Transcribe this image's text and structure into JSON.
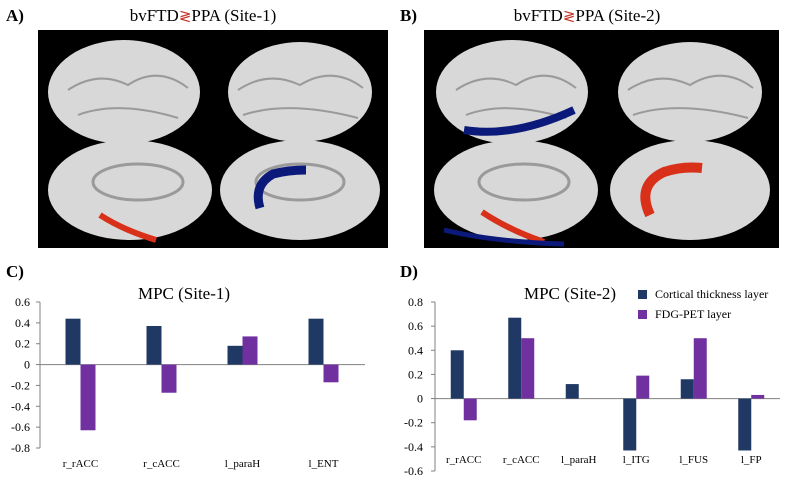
{
  "panels": {
    "a": {
      "label": "A)",
      "title_prefix": "bvFTD",
      "comparator": "≷",
      "title_suffix": "PPA (Site-1)"
    },
    "b": {
      "label": "B)",
      "title_prefix": "bvFTD",
      "comparator": "≷",
      "title_suffix": "PPA (Site-2)"
    },
    "c": {
      "label": "C)"
    },
    "d": {
      "label": "D)"
    }
  },
  "colors": {
    "thickness": "#203864",
    "fdg": "#7030a0",
    "brain_bg": "#000000",
    "highlight_red": "#d9301a",
    "highlight_blue": "#0b1a7a"
  },
  "legend": {
    "thickness": "Cortical thickness layer",
    "fdg": "FDG-PET layer"
  },
  "chart_data": [
    {
      "type": "bar",
      "title": "MPC (Site-1)",
      "categories": [
        "r_rACC",
        "r_cACC",
        "l_paraH",
        "l_ENT"
      ],
      "series": [
        {
          "name": "Cortical thickness layer",
          "values": [
            0.44,
            0.37,
            0.18,
            0.44
          ]
        },
        {
          "name": "FDG-PET layer",
          "values": [
            -0.63,
            -0.27,
            0.27,
            -0.17
          ]
        }
      ],
      "yticks": [
        "0.6",
        "0.4",
        "0.2",
        "0",
        "-0.2",
        "-0.4",
        "-0.6",
        "-0.8"
      ],
      "ylim": [
        -0.8,
        0.6
      ],
      "xlabel": "",
      "ylabel": ""
    },
    {
      "type": "bar",
      "title": "MPC (Site-2)",
      "categories": [
        "r_rACC",
        "r_cACC",
        "l_paraH",
        "l_ITG",
        "l_FUS",
        "l_FP"
      ],
      "series": [
        {
          "name": "Cortical thickness layer",
          "values": [
            0.4,
            0.67,
            0.12,
            -0.43,
            0.16,
            -0.43
          ]
        },
        {
          "name": "FDG-PET layer",
          "values": [
            -0.18,
            0.5,
            0.0,
            0.19,
            0.5,
            0.03
          ]
        }
      ],
      "yticks": [
        "0.8",
        "0.6",
        "0.4",
        "0.2",
        "0",
        "-0.2",
        "-0.4",
        "-0.6"
      ],
      "ylim": [
        -0.6,
        0.8
      ],
      "xlabel": "",
      "ylabel": ""
    }
  ]
}
